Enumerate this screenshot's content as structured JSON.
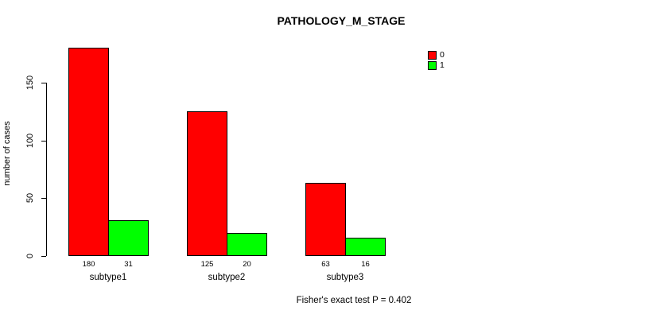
{
  "title": "PATHOLOGY_M_STAGE",
  "footer": "Fisher's exact test P = 0.402",
  "colors": {
    "background": "#ffffff",
    "text": "#000000",
    "axis": "#000000",
    "bar_border": "#000000",
    "series0": "#ff0000",
    "series1": "#00ff00"
  },
  "legend": {
    "entries": [
      {
        "label": "0",
        "color": "#ff0000"
      },
      {
        "label": "1",
        "color": "#00ff00"
      }
    ]
  },
  "chart_data": {
    "type": "bar",
    "title": "PATHOLOGY_M_STAGE",
    "categories": [
      "subtype1",
      "subtype2",
      "subtype3"
    ],
    "series": [
      {
        "name": "0",
        "color": "#ff0000",
        "values": [
          180,
          125,
          63
        ]
      },
      {
        "name": "1",
        "color": "#00ff00",
        "values": [
          31,
          20,
          16
        ]
      }
    ],
    "ylabel": "number of cases",
    "xlabel": "",
    "yticks": [
      0,
      50,
      100,
      150
    ],
    "ylim": [
      0,
      150
    ],
    "grid": false,
    "legend_position": "top-right",
    "bar_value_labels_shown": true,
    "annotation": "Fisher's exact test P = 0.402"
  }
}
